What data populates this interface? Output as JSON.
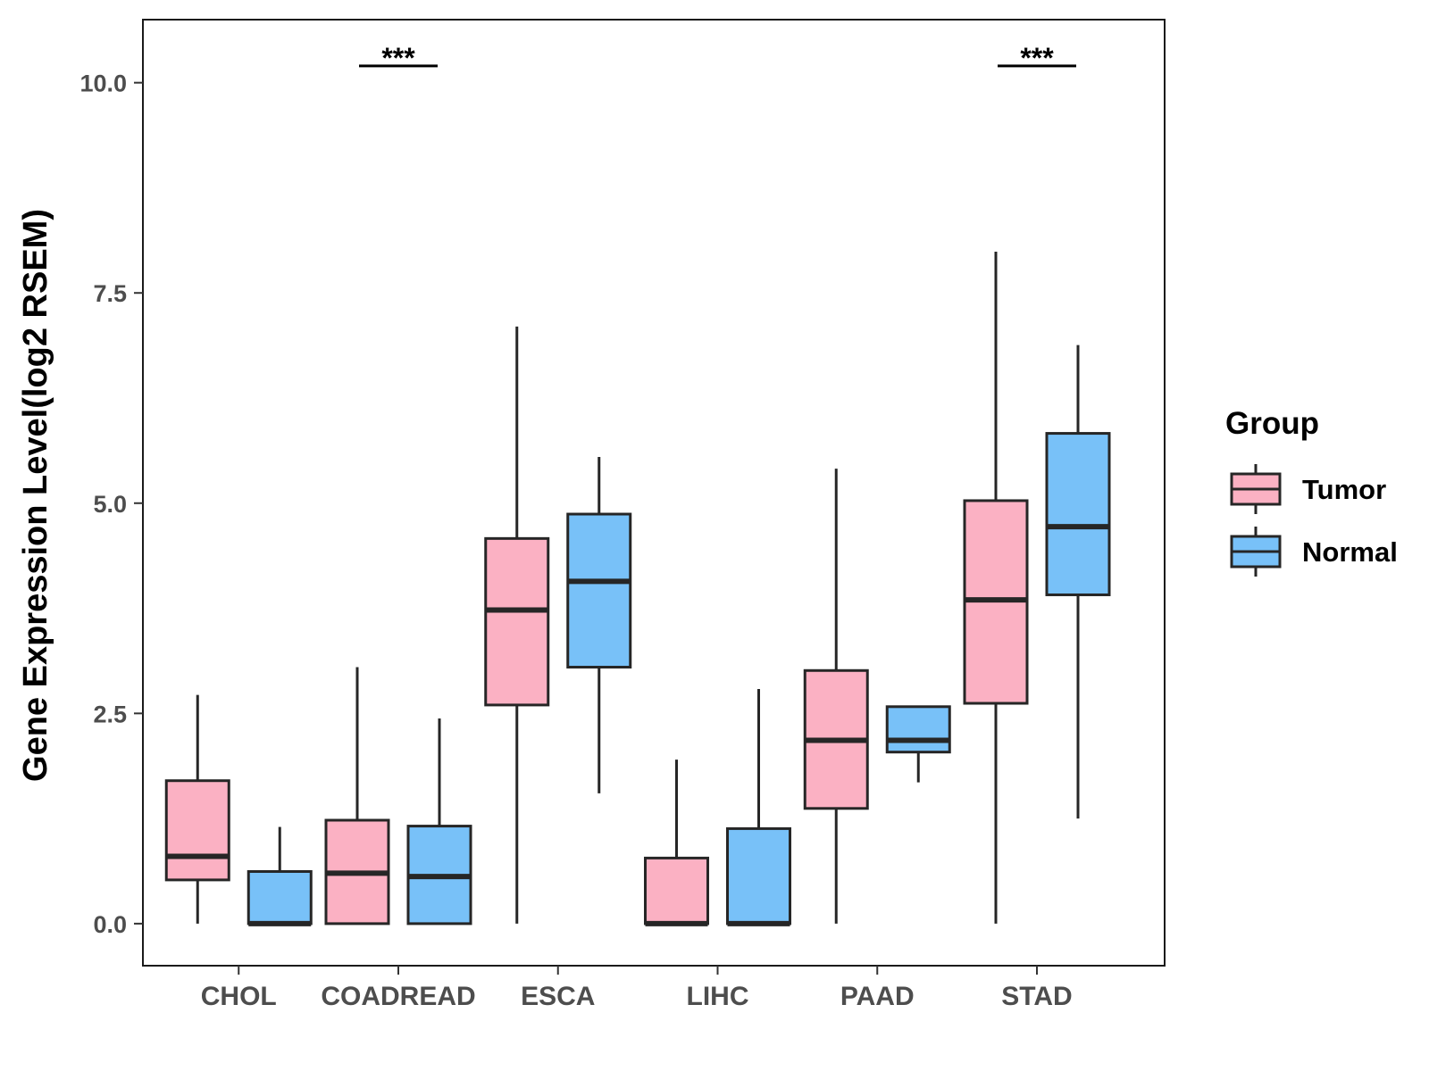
{
  "chart_data": {
    "type": "boxplot",
    "title": "",
    "xlabel": "",
    "ylabel": "Gene Expression Level(log2 RSEM)",
    "ylim": [
      -0.5,
      10.75
    ],
    "yticks": [
      0.0,
      2.5,
      5.0,
      7.5,
      10.0
    ],
    "ytick_labels": [
      "0.0",
      "2.5",
      "5.0",
      "7.5",
      "10.0"
    ],
    "categories": [
      "CHOL",
      "COADREAD",
      "ESCA",
      "LIHC",
      "PAAD",
      "STAD"
    ],
    "legend": {
      "title": "Group",
      "position": "right"
    },
    "series": [
      {
        "name": "Tumor",
        "color": "#fbb1c3",
        "boxes": [
          {
            "whisker_low": 0.0,
            "q1": 0.52,
            "median": 0.8,
            "q3": 1.7,
            "whisker_high": 2.72
          },
          {
            "whisker_low": 0.0,
            "q1": 0.0,
            "median": 0.6,
            "q3": 1.23,
            "whisker_high": 3.05
          },
          {
            "whisker_low": 0.0,
            "q1": 2.6,
            "median": 3.73,
            "q3": 4.58,
            "whisker_high": 7.1
          },
          {
            "whisker_low": 0.0,
            "q1": 0.0,
            "median": 0.0,
            "q3": 0.78,
            "whisker_high": 1.95
          },
          {
            "whisker_low": 0.0,
            "q1": 1.37,
            "median": 2.18,
            "q3": 3.01,
            "whisker_high": 5.41
          },
          {
            "whisker_low": 0.0,
            "q1": 2.62,
            "median": 3.85,
            "q3": 5.03,
            "whisker_high": 7.99
          }
        ]
      },
      {
        "name": "Normal",
        "color": "#78c1f8",
        "boxes": [
          {
            "whisker_low": 0.0,
            "q1": 0.0,
            "median": 0.0,
            "q3": 0.62,
            "whisker_high": 1.15
          },
          {
            "whisker_low": 0.0,
            "q1": 0.0,
            "median": 0.56,
            "q3": 1.16,
            "whisker_high": 2.44
          },
          {
            "whisker_low": 1.55,
            "q1": 3.05,
            "median": 4.07,
            "q3": 4.87,
            "whisker_high": 5.55
          },
          {
            "whisker_low": 0.0,
            "q1": 0.0,
            "median": 0.0,
            "q3": 1.13,
            "whisker_high": 2.79
          },
          {
            "whisker_low": 1.68,
            "q1": 2.04,
            "median": 2.18,
            "q3": 2.58,
            "whisker_high": 2.58
          },
          {
            "whisker_low": 1.25,
            "q1": 3.91,
            "median": 4.72,
            "q3": 5.83,
            "whisker_high": 6.88
          }
        ]
      }
    ],
    "significance": [
      {
        "category": "COADREAD",
        "label": "***",
        "y": 10.2
      },
      {
        "category": "STAD",
        "label": "***",
        "y": 10.2
      }
    ]
  }
}
